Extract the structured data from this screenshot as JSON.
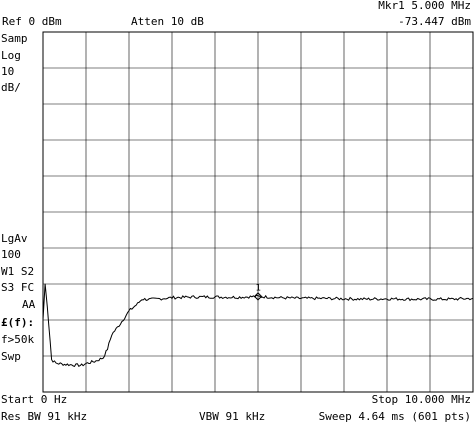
{
  "header": {
    "ref": "Ref  0 dBm",
    "atten": "Atten 10 dB",
    "marker_label": "Mkr1  5.000 MHz",
    "marker_value": "-73.447 dBm"
  },
  "left_panel": {
    "samp": "Samp",
    "log": "Log",
    "scale_value": "10",
    "scale_unit": "dB/",
    "lgav": "LgAv",
    "lgav_count": "100",
    "w1s2": "W1  S2",
    "s3fc": "S3  FC",
    "aa": "AA",
    "ef": "£(f):",
    "f50k": "f>50k",
    "swp": "Swp"
  },
  "footer": {
    "start": "Start 0 Hz",
    "stop": "Stop 10.000 MHz",
    "res_bw": "Res BW 91 kHz",
    "vbw": "VBW 91 kHz",
    "sweep": "Sweep 4.64 ms (601 pts)"
  },
  "chart_data": {
    "type": "line",
    "xlim": [
      0,
      10
    ],
    "ylim": [
      -100,
      0
    ],
    "grid": true,
    "marker": {
      "label": "1",
      "x": 5.0,
      "y": -73.447
    },
    "series": [
      {
        "points": [
          [
            0.0,
            -80.0
          ],
          [
            0.05,
            -70.0
          ],
          [
            0.1,
            -76.0
          ],
          [
            0.2,
            -91.0
          ],
          [
            0.3,
            -92.0
          ],
          [
            0.5,
            -92.3
          ],
          [
            0.7,
            -92.5
          ],
          [
            0.9,
            -92.6
          ],
          [
            1.0,
            -92.1
          ],
          [
            1.2,
            -91.5
          ],
          [
            1.4,
            -90.5
          ],
          [
            1.5,
            -88.0
          ],
          [
            1.6,
            -84.0
          ],
          [
            1.8,
            -81.0
          ],
          [
            2.0,
            -77.5
          ],
          [
            2.2,
            -75.5
          ],
          [
            2.3,
            -74.2
          ],
          [
            2.5,
            -74.3
          ],
          [
            3.0,
            -73.8
          ],
          [
            3.5,
            -73.6
          ],
          [
            4.0,
            -73.6
          ],
          [
            4.5,
            -73.7
          ],
          [
            5.0,
            -73.45
          ],
          [
            5.5,
            -73.8
          ],
          [
            6.0,
            -74.0
          ],
          [
            6.5,
            -74.0
          ],
          [
            7.0,
            -74.1
          ],
          [
            7.5,
            -74.2
          ],
          [
            8.0,
            -74.1
          ],
          [
            8.5,
            -74.2
          ],
          [
            9.0,
            -74.2
          ],
          [
            9.5,
            -74.2
          ],
          [
            10.0,
            -74.0
          ]
        ]
      }
    ]
  }
}
